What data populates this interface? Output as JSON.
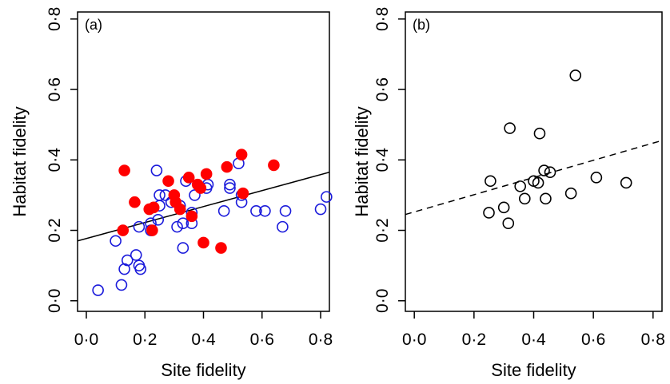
{
  "chart_data": [
    {
      "type": "scatter",
      "panel_label": "(a)",
      "xlabel": "Site fidelity",
      "ylabel": "Habitat fidelity",
      "xlim": [
        -0.03,
        0.83
      ],
      "ylim": [
        -0.03,
        0.82
      ],
      "x_ticks": [
        "0·0",
        "0·2",
        "0·4",
        "0·6",
        "0·8"
      ],
      "x_tick_values": [
        0,
        0.2,
        0.4,
        0.6,
        0.8
      ],
      "y_ticks": [
        "0·0",
        "0·2",
        "0·4",
        "0·6",
        "0·8"
      ],
      "y_tick_values": [
        0,
        0.2,
        0.4,
        0.6,
        0.8
      ],
      "grid": false,
      "series": [
        {
          "marker": "open-circle",
          "color": "#1a1adb",
          "points": [
            [
              0.04,
              0.03
            ],
            [
              0.1,
              0.17
            ],
            [
              0.12,
              0.045
            ],
            [
              0.13,
              0.09
            ],
            [
              0.14,
              0.115
            ],
            [
              0.17,
              0.13
            ],
            [
              0.18,
              0.1
            ],
            [
              0.185,
              0.09
            ],
            [
              0.18,
              0.21
            ],
            [
              0.22,
              0.2
            ],
            [
              0.22,
              0.22
            ],
            [
              0.24,
              0.37
            ],
            [
              0.245,
              0.23
            ],
            [
              0.25,
              0.3
            ],
            [
              0.25,
              0.27
            ],
            [
              0.27,
              0.3
            ],
            [
              0.29,
              0.28
            ],
            [
              0.31,
              0.21
            ],
            [
              0.32,
              0.27
            ],
            [
              0.33,
              0.15
            ],
            [
              0.33,
              0.22
            ],
            [
              0.34,
              0.34
            ],
            [
              0.36,
              0.25
            ],
            [
              0.36,
              0.22
            ],
            [
              0.37,
              0.3
            ],
            [
              0.41,
              0.32
            ],
            [
              0.415,
              0.33
            ],
            [
              0.47,
              0.255
            ],
            [
              0.49,
              0.33
            ],
            [
              0.49,
              0.32
            ],
            [
              0.52,
              0.39
            ],
            [
              0.53,
              0.3
            ],
            [
              0.53,
              0.28
            ],
            [
              0.58,
              0.255
            ],
            [
              0.61,
              0.255
            ],
            [
              0.67,
              0.21
            ],
            [
              0.68,
              0.255
            ],
            [
              0.8,
              0.26
            ],
            [
              0.82,
              0.295
            ]
          ]
        },
        {
          "marker": "filled-circle",
          "color": "#ff0000",
          "points": [
            [
              0.125,
              0.2
            ],
            [
              0.13,
              0.37
            ],
            [
              0.165,
              0.28
            ],
            [
              0.215,
              0.26
            ],
            [
              0.225,
              0.2
            ],
            [
              0.23,
              0.265
            ],
            [
              0.28,
              0.34
            ],
            [
              0.3,
              0.3
            ],
            [
              0.305,
              0.28
            ],
            [
              0.32,
              0.26
            ],
            [
              0.35,
              0.35
            ],
            [
              0.36,
              0.24
            ],
            [
              0.38,
              0.33
            ],
            [
              0.39,
              0.32
            ],
            [
              0.4,
              0.165
            ],
            [
              0.41,
              0.36
            ],
            [
              0.46,
              0.15
            ],
            [
              0.48,
              0.38
            ],
            [
              0.53,
              0.415
            ],
            [
              0.535,
              0.305
            ],
            [
              0.64,
              0.385
            ]
          ]
        }
      ],
      "fit_line": {
        "style": "solid",
        "x": [
          -0.03,
          0.83
        ],
        "y": [
          0.17,
          0.365
        ]
      }
    },
    {
      "type": "scatter",
      "panel_label": "(b)",
      "xlabel": "Site fidelity",
      "ylabel": "Habitat fidelity",
      "xlim": [
        -0.03,
        0.83
      ],
      "ylim": [
        -0.03,
        0.82
      ],
      "x_ticks": [
        "0·0",
        "0·2",
        "0·4",
        "0·6",
        "0·8"
      ],
      "x_tick_values": [
        0,
        0.2,
        0.4,
        0.6,
        0.8
      ],
      "y_ticks": [
        "0·0",
        "0·2",
        "0·4",
        "0·6",
        "0·8"
      ],
      "y_tick_values": [
        0,
        0.2,
        0.4,
        0.6,
        0.8
      ],
      "grid": false,
      "series": [
        {
          "marker": "open-circle",
          "color": "#000000",
          "points": [
            [
              0.25,
              0.25
            ],
            [
              0.255,
              0.34
            ],
            [
              0.3,
              0.265
            ],
            [
              0.315,
              0.22
            ],
            [
              0.32,
              0.49
            ],
            [
              0.355,
              0.325
            ],
            [
              0.37,
              0.29
            ],
            [
              0.4,
              0.34
            ],
            [
              0.415,
              0.335
            ],
            [
              0.42,
              0.475
            ],
            [
              0.435,
              0.37
            ],
            [
              0.44,
              0.29
            ],
            [
              0.455,
              0.365
            ],
            [
              0.525,
              0.305
            ],
            [
              0.54,
              0.64
            ],
            [
              0.61,
              0.35
            ],
            [
              0.71,
              0.335
            ]
          ]
        }
      ],
      "fit_line": {
        "style": "dashed",
        "x": [
          -0.03,
          0.83
        ],
        "y": [
          0.245,
          0.455
        ]
      }
    }
  ]
}
